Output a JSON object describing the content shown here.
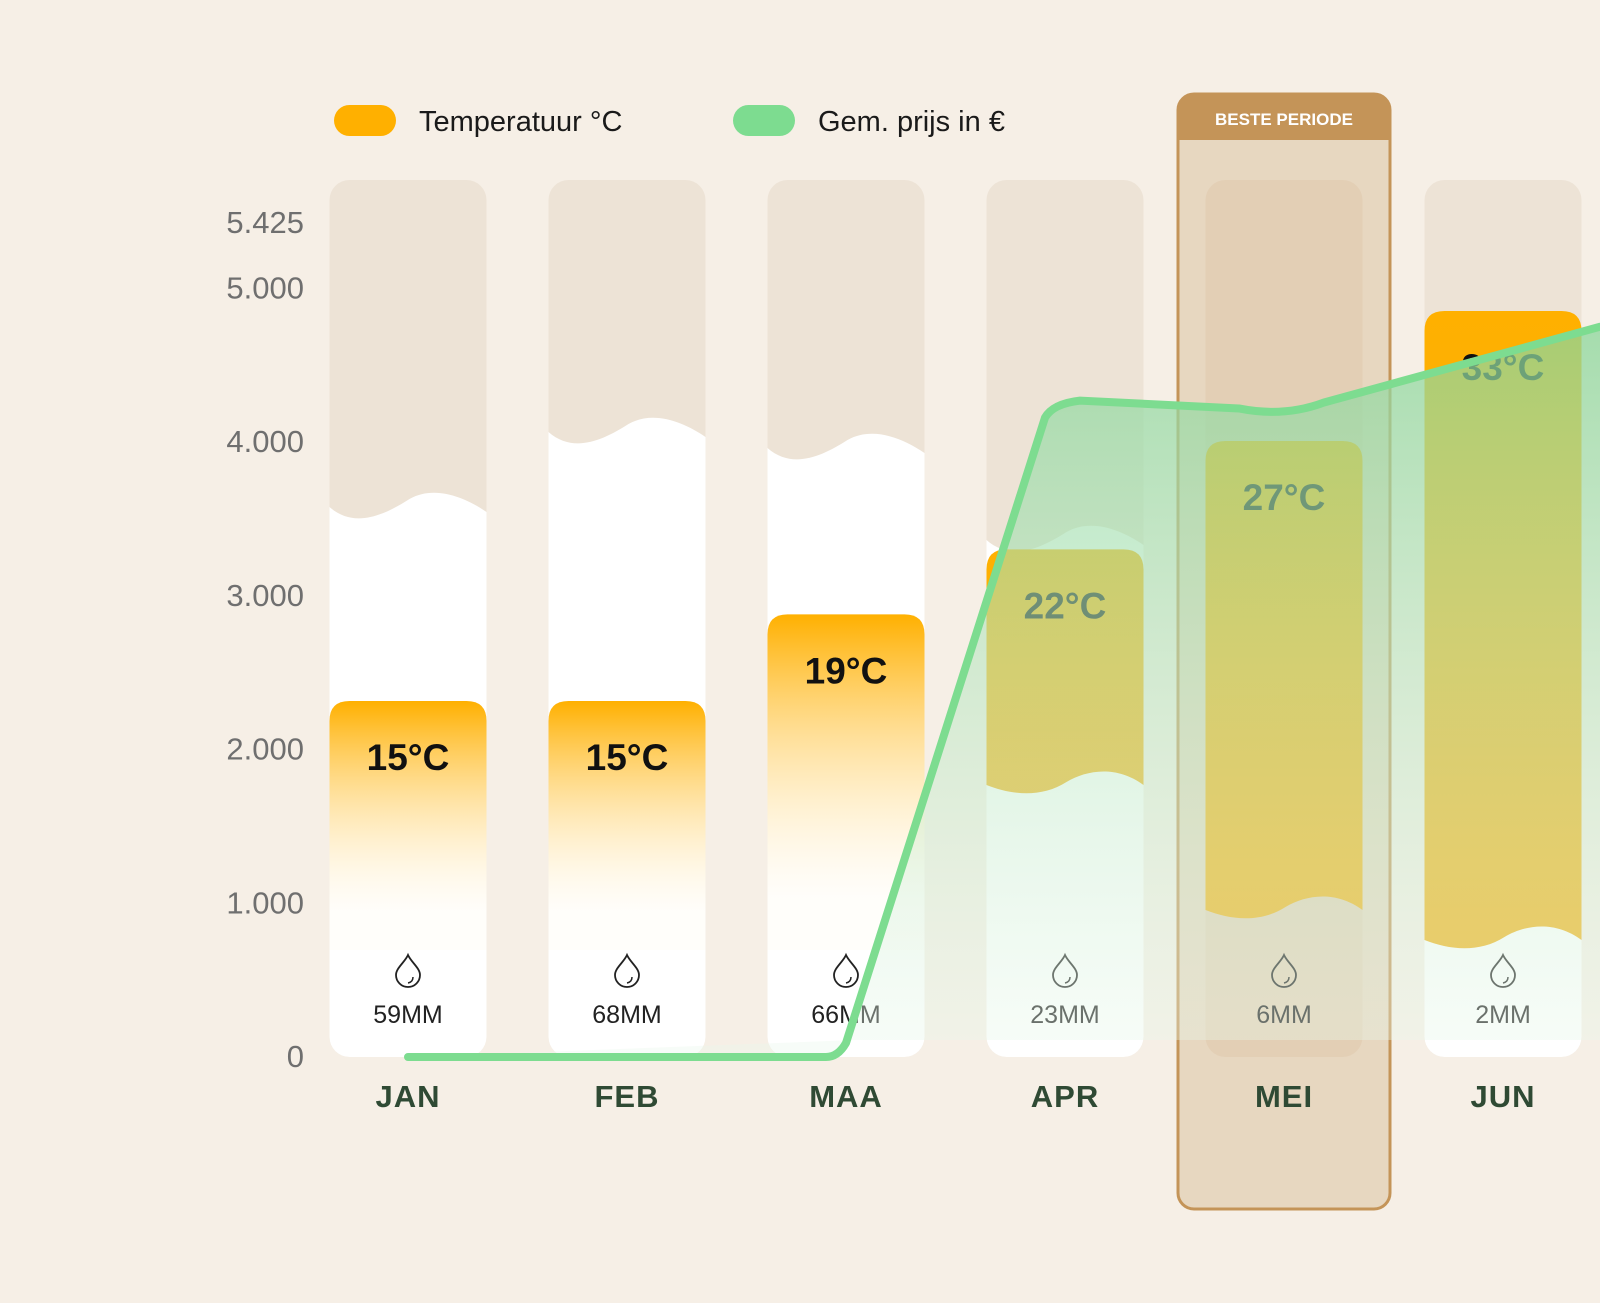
{
  "legend": {
    "temperature_label": "Temperatuur °C",
    "price_label": "Gem. prijs in €"
  },
  "highlight": {
    "label": "BESTE PERIODE",
    "month": "MEI"
  },
  "colors": {
    "background": "#f6efe6",
    "temperature": "#ffb000",
    "price_line": "#7ddc90",
    "highlight_border": "#c49458",
    "highlight_fill": "#e7d7c0",
    "month_label": "#2f4a34",
    "card_top": "#ede3d6",
    "card_bottom": "#ffffff"
  },
  "chart_data": {
    "type": "bar",
    "title": "",
    "xlabel": "",
    "ylabel": "",
    "ylim": [
      0,
      5425
    ],
    "yticks": [
      "0",
      "1.000",
      "2.000",
      "3.000",
      "4.000",
      "5.000",
      "5.425"
    ],
    "categories": [
      "JAN",
      "FEB",
      "MAA",
      "APR",
      "MEI",
      "JUN"
    ],
    "series": [
      {
        "name": "Temperatuur °C",
        "kind": "bar",
        "values": [
          15,
          15,
          19,
          22,
          27,
          33
        ],
        "labels": [
          "15°C",
          "15°C",
          "19°C",
          "22°C",
          "27°C",
          "33°C"
        ]
      },
      {
        "name": "Gem. prijs in €",
        "kind": "area-line",
        "values": [
          0,
          0,
          0,
          4250,
          4225,
          4750
        ]
      }
    ],
    "rainfall": [
      "59MM",
      "68MM",
      "66MM",
      "23MM",
      "6MM",
      "2MM"
    ]
  }
}
